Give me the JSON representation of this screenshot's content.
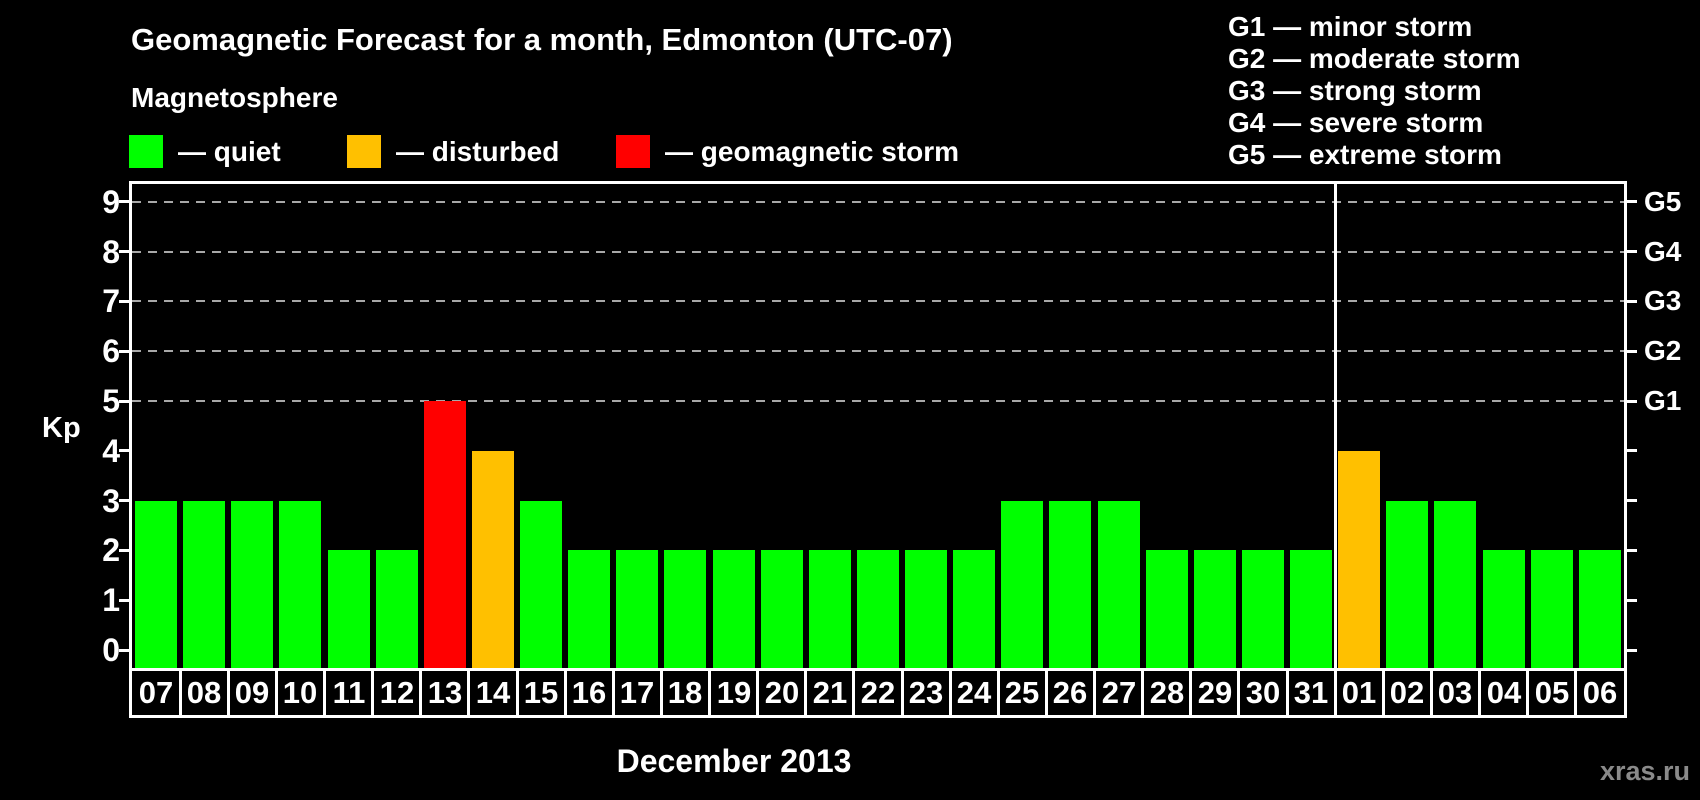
{
  "header": {
    "title": "Geomagnetic Forecast for a month, Edmonton (UTC-07)",
    "legend_heading": "Magnetosphere",
    "legend_items": [
      {
        "key": "quiet",
        "label": "— quiet",
        "color": "#00ff00"
      },
      {
        "key": "disturbed",
        "label": "— disturbed",
        "color": "#ffc000"
      },
      {
        "key": "storm",
        "label": "— geomagnetic storm",
        "color": "#ff0000"
      }
    ],
    "g_legend": [
      "G1 — minor storm",
      "G2 — moderate storm",
      "G3 — strong storm",
      "G4 — severe storm",
      "G5 — extreme storm"
    ]
  },
  "footer": {
    "month_label": "December 2013",
    "watermark": "xras.ru"
  },
  "chart_data": {
    "type": "bar",
    "title": "Geomagnetic Forecast for a month, Edmonton (UTC-07)",
    "ylabel": "Kp",
    "xlabel": "December 2013",
    "ylim": [
      0,
      9.5
    ],
    "y_ticks": [
      0,
      1,
      2,
      3,
      4,
      5,
      6,
      7,
      8,
      9
    ],
    "gridlines_at": [
      5,
      6,
      7,
      8,
      9
    ],
    "grid": "dashed horizontal lines at storm levels only",
    "legend_position": "top",
    "right_axis": [
      {
        "level": 5,
        "label": "G1"
      },
      {
        "level": 6,
        "label": "G2"
      },
      {
        "level": 7,
        "label": "G3"
      },
      {
        "level": 8,
        "label": "G4"
      },
      {
        "level": 9,
        "label": "G5"
      }
    ],
    "status_colors": {
      "quiet": "#00ff00",
      "disturbed": "#ffc000",
      "storm": "#ff0000"
    },
    "month_separator_after_index": 24,
    "categories": [
      "07",
      "08",
      "09",
      "10",
      "11",
      "12",
      "13",
      "14",
      "15",
      "16",
      "17",
      "18",
      "19",
      "20",
      "21",
      "22",
      "23",
      "24",
      "25",
      "26",
      "27",
      "28",
      "29",
      "30",
      "31",
      "01",
      "02",
      "03",
      "04",
      "05",
      "06"
    ],
    "values": [
      3,
      3,
      3,
      3,
      2,
      2,
      5,
      4,
      3,
      2,
      2,
      2,
      2,
      2,
      2,
      2,
      2,
      2,
      3,
      3,
      3,
      2,
      2,
      2,
      2,
      4,
      3,
      3,
      2,
      2,
      2
    ],
    "days": [
      {
        "day": "07",
        "kp": 3,
        "status": "quiet"
      },
      {
        "day": "08",
        "kp": 3,
        "status": "quiet"
      },
      {
        "day": "09",
        "kp": 3,
        "status": "quiet"
      },
      {
        "day": "10",
        "kp": 3,
        "status": "quiet"
      },
      {
        "day": "11",
        "kp": 2,
        "status": "quiet"
      },
      {
        "day": "12",
        "kp": 2,
        "status": "quiet"
      },
      {
        "day": "13",
        "kp": 5,
        "status": "storm"
      },
      {
        "day": "14",
        "kp": 4,
        "status": "disturbed"
      },
      {
        "day": "15",
        "kp": 3,
        "status": "quiet"
      },
      {
        "day": "16",
        "kp": 2,
        "status": "quiet"
      },
      {
        "day": "17",
        "kp": 2,
        "status": "quiet"
      },
      {
        "day": "18",
        "kp": 2,
        "status": "quiet"
      },
      {
        "day": "19",
        "kp": 2,
        "status": "quiet"
      },
      {
        "day": "20",
        "kp": 2,
        "status": "quiet"
      },
      {
        "day": "21",
        "kp": 2,
        "status": "quiet"
      },
      {
        "day": "22",
        "kp": 2,
        "status": "quiet"
      },
      {
        "day": "23",
        "kp": 2,
        "status": "quiet"
      },
      {
        "day": "24",
        "kp": 2,
        "status": "quiet"
      },
      {
        "day": "25",
        "kp": 3,
        "status": "quiet"
      },
      {
        "day": "26",
        "kp": 3,
        "status": "quiet"
      },
      {
        "day": "27",
        "kp": 3,
        "status": "quiet"
      },
      {
        "day": "28",
        "kp": 2,
        "status": "quiet"
      },
      {
        "day": "29",
        "kp": 2,
        "status": "quiet"
      },
      {
        "day": "30",
        "kp": 2,
        "status": "quiet"
      },
      {
        "day": "31",
        "kp": 2,
        "status": "quiet"
      },
      {
        "day": "01",
        "kp": 4,
        "status": "disturbed"
      },
      {
        "day": "02",
        "kp": 3,
        "status": "quiet"
      },
      {
        "day": "03",
        "kp": 3,
        "status": "quiet"
      },
      {
        "day": "04",
        "kp": 2,
        "status": "quiet"
      },
      {
        "day": "05",
        "kp": 2,
        "status": "quiet"
      },
      {
        "day": "06",
        "kp": 2,
        "status": "quiet"
      }
    ]
  }
}
